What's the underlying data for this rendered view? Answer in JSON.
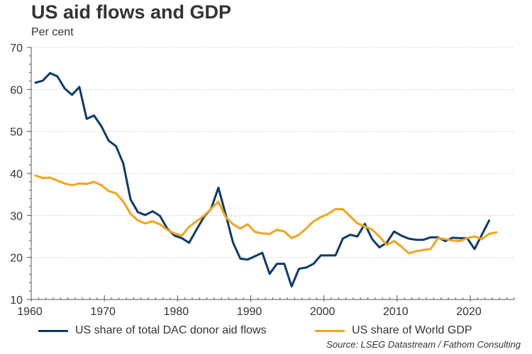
{
  "chart_data": {
    "type": "line",
    "title": "US aid flows and GDP",
    "ylabel": "Per cent",
    "xlabel": "",
    "source": "Source: LSEG Datastream / Fathom Consulting",
    "xlim": [
      1960,
      2026
    ],
    "ylim": [
      10,
      70
    ],
    "x_ticks": [
      1960,
      1970,
      1980,
      1990,
      2000,
      2010,
      2020
    ],
    "x_tick_labels": [
      "1960",
      "1970",
      "1980",
      "1990",
      "2000",
      "2010",
      "2020"
    ],
    "y_ticks": [
      10,
      20,
      30,
      40,
      50,
      60,
      70
    ],
    "y_tick_labels": [
      "10",
      "20",
      "30",
      "40",
      "50",
      "60",
      "70"
    ],
    "grid": "horizontal-dotted",
    "legend_position": "bottom",
    "series": [
      {
        "name": "US share of total DAC donor aid flows",
        "color": "#0b3a6b",
        "start_year": 1960,
        "values": [
          61.6,
          62.1,
          63.9,
          63.1,
          60.2,
          58.7,
          60.6,
          53.0,
          53.8,
          51.3,
          47.8,
          46.5,
          42.4,
          33.8,
          30.8,
          30.1,
          31.0,
          29.9,
          26.9,
          25.2,
          24.6,
          23.5,
          26.6,
          29.6,
          31.6,
          36.6,
          30.2,
          23.5,
          19.7,
          19.5,
          20.3,
          21.1,
          16.1,
          18.5,
          18.5,
          13.1,
          17.3,
          17.6,
          18.5,
          20.5,
          20.5,
          20.5,
          24.5,
          25.4,
          25.0,
          28.0,
          24.4,
          22.4,
          23.5,
          26.2,
          25.2,
          24.5,
          24.2,
          24.2,
          24.8,
          24.8,
          23.9,
          24.7,
          24.6,
          24.6,
          22.0,
          25.4,
          28.8
        ]
      },
      {
        "name": "US share of World GDP",
        "color": "#f5a31a",
        "start_year": 1960,
        "values": [
          39.5,
          38.9,
          39.0,
          38.3,
          37.6,
          37.2,
          37.6,
          37.5,
          38.0,
          37.2,
          35.8,
          35.3,
          33.3,
          30.4,
          28.8,
          28.1,
          28.6,
          27.9,
          26.6,
          25.7,
          25.2,
          27.3,
          28.6,
          29.9,
          31.6,
          33.3,
          29.6,
          27.9,
          26.9,
          27.9,
          26.1,
          25.7,
          25.6,
          26.6,
          26.2,
          24.6,
          25.4,
          26.9,
          28.6,
          29.6,
          30.4,
          31.5,
          31.5,
          29.8,
          28.1,
          27.4,
          26.6,
          25.0,
          23.0,
          23.9,
          22.6,
          21.0,
          21.5,
          21.8,
          22.0,
          24.6,
          24.4,
          24.0,
          23.9,
          24.6,
          25.0,
          24.4,
          25.6,
          26.0
        ]
      }
    ]
  }
}
